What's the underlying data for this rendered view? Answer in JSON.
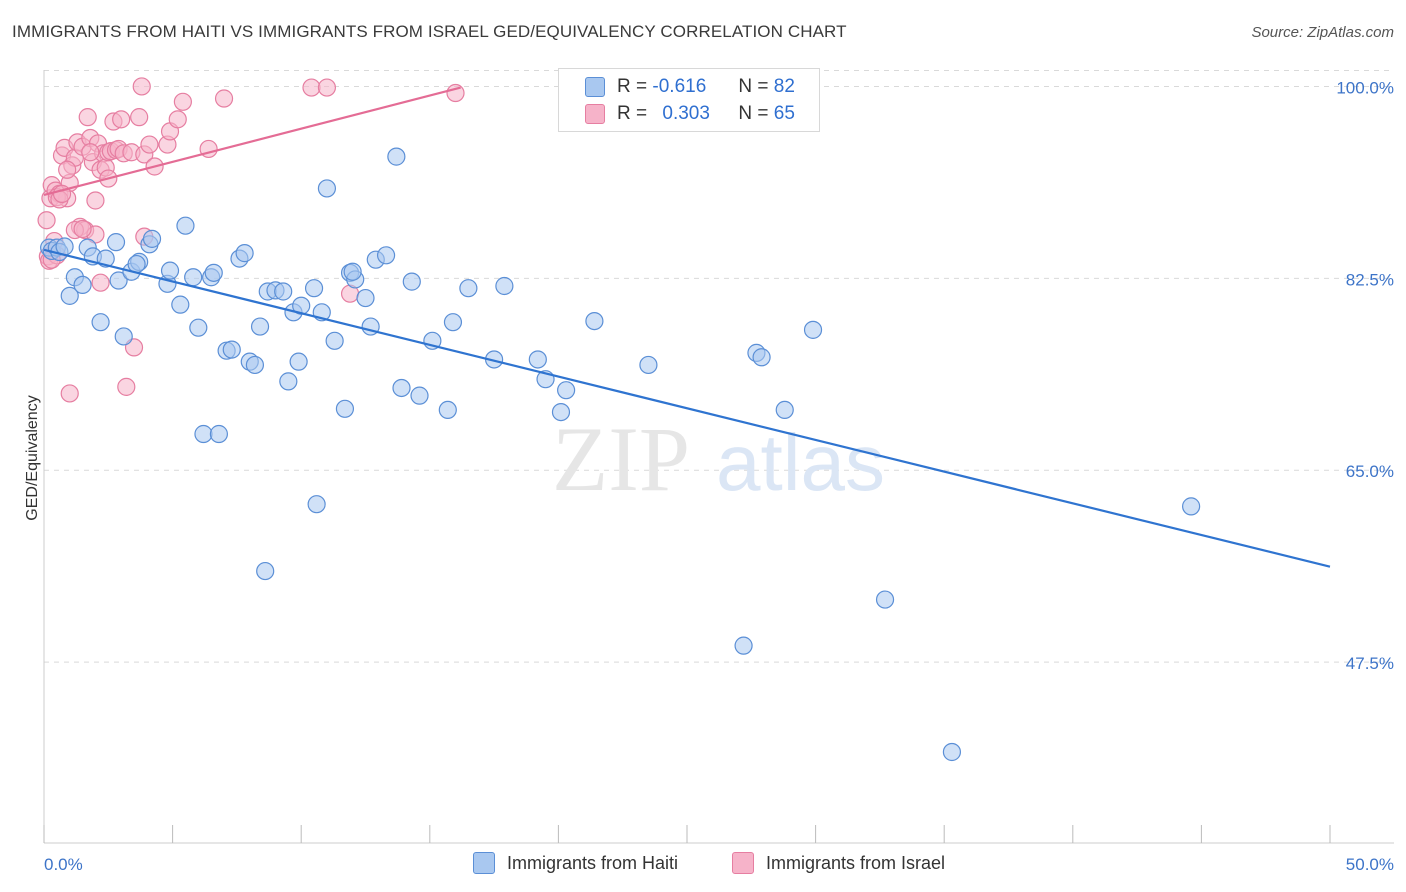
{
  "header": {
    "title": "IMMIGRANTS FROM HAITI VS IMMIGRANTS FROM ISRAEL GED/EQUIVALENCY CORRELATION CHART",
    "source": "Source: ZipAtlas.com"
  },
  "legend": {
    "haiti": {
      "r_label": "R =",
      "r_value": "-0.616",
      "n_label": "N =",
      "n_value": "82"
    },
    "israel": {
      "r_label": "R =",
      "r_value": "0.303",
      "n_label": "N =",
      "n_value": "65"
    }
  },
  "watermark": {
    "zip": "ZIP",
    "atlas": "atlas"
  },
  "colors": {
    "haiti_fill": "#a9c8f0",
    "haiti_stroke": "#5b8fd6",
    "haiti_line": "#2f74d0",
    "israel_fill": "#f6b3c9",
    "israel_stroke": "#e67ea1",
    "israel_line": "#e46c95",
    "grid": "#d9d9d9",
    "tick_text": "#3d74c8"
  },
  "chart_data": {
    "type": "scatter",
    "title": "IMMIGRANTS FROM HAITI VS IMMIGRANTS FROM ISRAEL GED/EQUIVALENCY CORRELATION CHART",
    "xlabel": "",
    "ylabel": "GED/Equivalency",
    "xlim": [
      0,
      50
    ],
    "ylim": [
      31,
      101.5
    ],
    "x_tick_labels": [
      "0.0%",
      "50.0%"
    ],
    "y_ticks": [
      47.5,
      65.0,
      82.5,
      100.0
    ],
    "y_tick_labels": [
      "47.5%",
      "65.0%",
      "82.5%",
      "100.0%"
    ],
    "grid": true,
    "legend_position": "top-center",
    "series": [
      {
        "name": "Immigrants from Haiti",
        "color": "#a9c8f0",
        "trend": {
          "x": [
            0,
            50
          ],
          "y": [
            85.1,
            56.2
          ]
        },
        "points": [
          [
            0.2,
            85.3
          ],
          [
            0.3,
            85.0
          ],
          [
            0.5,
            85.3
          ],
          [
            0.6,
            84.9
          ],
          [
            0.8,
            85.4
          ],
          [
            1.0,
            80.9
          ],
          [
            1.2,
            82.6
          ],
          [
            1.5,
            81.9
          ],
          [
            1.7,
            85.3
          ],
          [
            1.9,
            84.5
          ],
          [
            2.2,
            78.5
          ],
          [
            2.4,
            84.3
          ],
          [
            2.8,
            85.8
          ],
          [
            2.9,
            82.3
          ],
          [
            3.1,
            77.2
          ],
          [
            3.4,
            83.1
          ],
          [
            3.7,
            84.0
          ],
          [
            4.1,
            85.6
          ],
          [
            4.2,
            86.1
          ],
          [
            4.8,
            82.0
          ],
          [
            4.9,
            83.2
          ],
          [
            5.3,
            80.1
          ],
          [
            5.5,
            87.3
          ],
          [
            5.8,
            82.6
          ],
          [
            6.0,
            78.0
          ],
          [
            6.2,
            68.3
          ],
          [
            6.5,
            82.6
          ],
          [
            6.6,
            83.0
          ],
          [
            6.8,
            68.3
          ],
          [
            7.1,
            75.9
          ],
          [
            7.3,
            76.0
          ],
          [
            7.6,
            84.3
          ],
          [
            7.8,
            84.8
          ],
          [
            8.0,
            74.9
          ],
          [
            8.2,
            74.6
          ],
          [
            8.4,
            78.1
          ],
          [
            8.6,
            55.8
          ],
          [
            8.7,
            81.3
          ],
          [
            9.0,
            81.4
          ],
          [
            9.3,
            81.3
          ],
          [
            9.5,
            73.1
          ],
          [
            9.7,
            79.4
          ],
          [
            9.9,
            74.9
          ],
          [
            10.0,
            80.0
          ],
          [
            10.5,
            81.6
          ],
          [
            10.6,
            61.9
          ],
          [
            10.8,
            79.4
          ],
          [
            11.0,
            90.7
          ],
          [
            11.3,
            76.8
          ],
          [
            11.7,
            70.6
          ],
          [
            11.9,
            83.0
          ],
          [
            12.1,
            82.4
          ],
          [
            12.5,
            80.7
          ],
          [
            12.7,
            78.1
          ],
          [
            12.9,
            84.2
          ],
          [
            13.3,
            84.6
          ],
          [
            13.7,
            93.6
          ],
          [
            13.9,
            72.5
          ],
          [
            14.3,
            82.2
          ],
          [
            14.6,
            71.8
          ],
          [
            15.1,
            76.8
          ],
          [
            15.7,
            70.5
          ],
          [
            15.9,
            78.5
          ],
          [
            16.5,
            81.6
          ],
          [
            17.5,
            75.1
          ],
          [
            17.9,
            81.8
          ],
          [
            19.2,
            75.1
          ],
          [
            19.5,
            73.3
          ],
          [
            20.1,
            70.3
          ],
          [
            20.3,
            72.3
          ],
          [
            21.4,
            78.6
          ],
          [
            23.5,
            74.6
          ],
          [
            27.2,
            49.0
          ],
          [
            27.7,
            75.7
          ],
          [
            27.9,
            75.3
          ],
          [
            28.8,
            70.5
          ],
          [
            29.9,
            77.8
          ],
          [
            32.7,
            53.2
          ],
          [
            35.3,
            39.3
          ],
          [
            44.6,
            61.7
          ],
          [
            3.6,
            83.8
          ],
          [
            12.0,
            83.1
          ]
        ]
      },
      {
        "name": "Immigrants from Israel",
        "color": "#f6b3c9",
        "trend": {
          "x": [
            0,
            16.2
          ],
          "y": [
            90.1,
            99.9
          ]
        },
        "points": [
          [
            0.1,
            87.8
          ],
          [
            0.15,
            84.5
          ],
          [
            0.2,
            84.1
          ],
          [
            0.25,
            89.8
          ],
          [
            0.3,
            91.0
          ],
          [
            0.4,
            85.9
          ],
          [
            0.45,
            90.5
          ],
          [
            0.5,
            84.6
          ],
          [
            0.6,
            90.2
          ],
          [
            0.7,
            93.7
          ],
          [
            0.8,
            94.4
          ],
          [
            0.9,
            89.8
          ],
          [
            1.0,
            91.2
          ],
          [
            1.1,
            92.8
          ],
          [
            1.2,
            93.5
          ],
          [
            1.3,
            94.9
          ],
          [
            1.4,
            87.2
          ],
          [
            1.5,
            94.5
          ],
          [
            1.6,
            86.9
          ],
          [
            1.7,
            97.2
          ],
          [
            1.8,
            95.3
          ],
          [
            1.9,
            93.1
          ],
          [
            2.0,
            89.6
          ],
          [
            2.1,
            94.8
          ],
          [
            2.2,
            92.4
          ],
          [
            2.3,
            93.9
          ],
          [
            2.4,
            92.6
          ],
          [
            2.5,
            94.0
          ],
          [
            2.6,
            94.1
          ],
          [
            2.7,
            96.8
          ],
          [
            2.8,
            94.2
          ],
          [
            2.9,
            94.3
          ],
          [
            3.0,
            97.0
          ],
          [
            3.1,
            93.9
          ],
          [
            3.2,
            72.6
          ],
          [
            3.4,
            94.0
          ],
          [
            3.5,
            76.2
          ],
          [
            3.7,
            97.2
          ],
          [
            3.8,
            100.0
          ],
          [
            3.9,
            93.8
          ],
          [
            4.1,
            94.7
          ],
          [
            4.3,
            92.7
          ],
          [
            4.8,
            94.7
          ],
          [
            4.9,
            95.9
          ],
          [
            5.2,
            97.0
          ],
          [
            5.4,
            98.6
          ],
          [
            6.4,
            94.3
          ],
          [
            7.0,
            98.9
          ],
          [
            10.4,
            99.9
          ],
          [
            11.0,
            99.9
          ],
          [
            11.9,
            81.1
          ],
          [
            16.0,
            99.4
          ],
          [
            1.0,
            72.0
          ],
          [
            0.5,
            89.9
          ],
          [
            0.9,
            92.4
          ],
          [
            1.2,
            86.9
          ],
          [
            2.2,
            82.1
          ],
          [
            2.5,
            91.6
          ],
          [
            3.9,
            86.3
          ],
          [
            0.3,
            84.2
          ],
          [
            0.6,
            89.7
          ],
          [
            1.8,
            94.0
          ],
          [
            2.0,
            86.5
          ],
          [
            0.7,
            90.2
          ],
          [
            1.5,
            87.0
          ]
        ]
      }
    ]
  },
  "bottom_legend": {
    "haiti_label": "Immigrants from Haiti",
    "israel_label": "Immigrants from Israel"
  },
  "axes": {
    "y_label": "GED/Equivalency",
    "x_min_label": "0.0%",
    "x_max_label": "50.0%"
  }
}
